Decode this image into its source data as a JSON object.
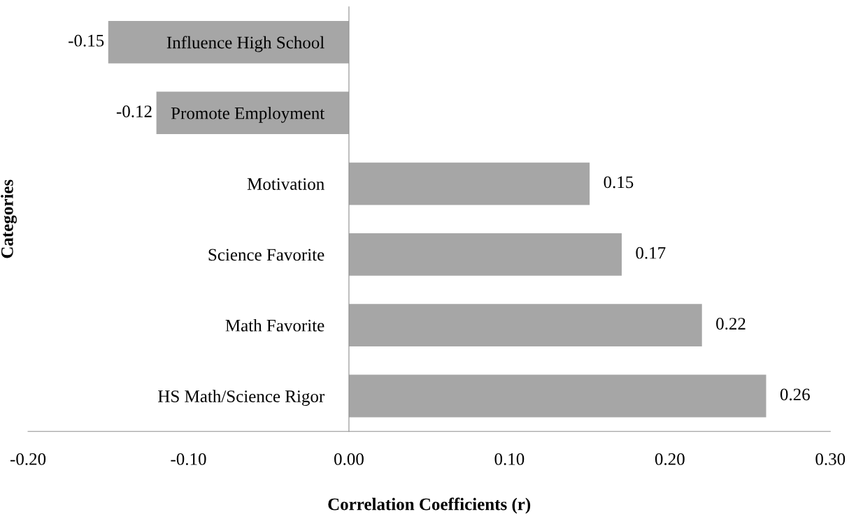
{
  "chart_data": {
    "type": "bar",
    "orientation": "horizontal",
    "xlabel": "Correlation Coefficients (r)",
    "ylabel": "Categories",
    "categories": [
      "Influence High School",
      "Promote Employment",
      "Motivation",
      "Science Favorite",
      "Math Favorite",
      "HS Math/Science Rigor"
    ],
    "values": [
      -0.15,
      -0.12,
      0.15,
      0.17,
      0.22,
      0.26
    ],
    "color": "#a6a6a6",
    "data_labels": true,
    "grid": false,
    "legend": false,
    "xlim": [
      -0.2,
      0.3
    ],
    "xticks": [
      {
        "value": -0.2,
        "label": "-0.20"
      },
      {
        "value": -0.1,
        "label": "-0.10"
      },
      {
        "value": 0,
        "label": "0.00"
      },
      {
        "value": 0.1,
        "label": "0.10"
      },
      {
        "value": 0.2,
        "label": "0.20"
      },
      {
        "value": 0.3,
        "label": "0.30"
      }
    ]
  }
}
